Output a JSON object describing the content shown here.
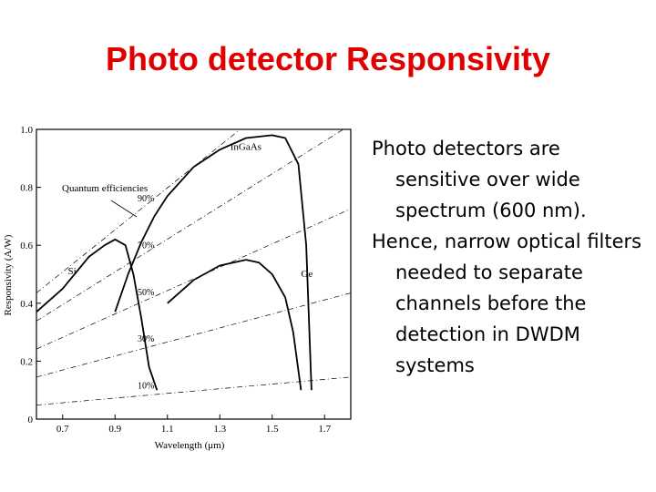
{
  "slide": {
    "title": "Photo detector Responsivity",
    "bullets": [
      "Photo detectors are sensitive over wide spectrum (600 nm).",
      "Hence, narrow optical filters needed to separate channels before the detection in DWDM systems"
    ]
  },
  "chart_data": {
    "type": "line",
    "title": "",
    "xlabel": "Wavelength (μm)",
    "ylabel": "Responsivity (A/W)",
    "xlim": [
      0.6,
      1.8
    ],
    "ylim": [
      0,
      1.0
    ],
    "x_ticks": [
      "0.7",
      "0.9",
      "1.1",
      "1.3",
      "1.5",
      "1.7"
    ],
    "y_ticks": [
      "0",
      "0.2",
      "0.4",
      "0.6",
      "0.8",
      "1.0"
    ],
    "grid": false,
    "series": [
      {
        "name": "Si",
        "x": [
          0.6,
          0.7,
          0.8,
          0.86,
          0.9,
          0.94,
          0.97,
          1.0,
          1.03,
          1.06
        ],
        "y": [
          0.37,
          0.45,
          0.56,
          0.6,
          0.62,
          0.6,
          0.5,
          0.35,
          0.18,
          0.1
        ]
      },
      {
        "name": "InGaAs",
        "x": [
          0.9,
          0.95,
          1.0,
          1.05,
          1.1,
          1.2,
          1.3,
          1.4,
          1.5,
          1.55,
          1.6,
          1.63,
          1.65
        ],
        "y": [
          0.37,
          0.5,
          0.61,
          0.7,
          0.77,
          0.87,
          0.93,
          0.97,
          0.98,
          0.97,
          0.88,
          0.6,
          0.1
        ]
      },
      {
        "name": "Ge",
        "x": [
          1.1,
          1.2,
          1.3,
          1.4,
          1.45,
          1.5,
          1.55,
          1.58,
          1.61
        ],
        "y": [
          0.4,
          0.48,
          0.53,
          0.55,
          0.54,
          0.5,
          0.42,
          0.3,
          0.1
        ]
      }
    ],
    "efficiency_lines": [
      {
        "label": "90%",
        "eta": 0.9
      },
      {
        "label": "70%",
        "eta": 0.7
      },
      {
        "label": "50%",
        "eta": 0.5
      },
      {
        "label": "30%",
        "eta": 0.3
      },
      {
        "label": "10%",
        "eta": 0.1
      }
    ],
    "annotations": [
      "Quantum efficiencies"
    ]
  }
}
